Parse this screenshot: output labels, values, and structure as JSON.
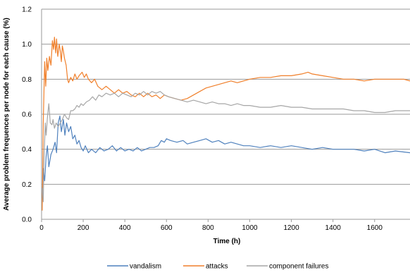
{
  "chart_data": {
    "type": "line",
    "xlabel": "Time (h)",
    "ylabel": "Average problem frequences per node for each cause (%)",
    "xlim": [
      0,
      1770
    ],
    "ylim": [
      0,
      1.2
    ],
    "xticks": [
      0,
      200,
      400,
      600,
      800,
      1000,
      1200,
      1400,
      1600
    ],
    "yticks": [
      "0.0",
      "0.2",
      "0.4",
      "0.6",
      "0.8",
      "1.0",
      "1.2"
    ],
    "grid": "horizontal",
    "legend_position": "bottom",
    "series": [
      {
        "name": "vandalism",
        "color": "#4f81bd",
        "points": [
          [
            3,
            0.12
          ],
          [
            8,
            0.29
          ],
          [
            15,
            0.22
          ],
          [
            22,
            0.36
          ],
          [
            28,
            0.42
          ],
          [
            35,
            0.3
          ],
          [
            45,
            0.37
          ],
          [
            55,
            0.4
          ],
          [
            65,
            0.44
          ],
          [
            72,
            0.38
          ],
          [
            80,
            0.55
          ],
          [
            88,
            0.59
          ],
          [
            95,
            0.5
          ],
          [
            105,
            0.57
          ],
          [
            112,
            0.48
          ],
          [
            120,
            0.55
          ],
          [
            130,
            0.5
          ],
          [
            140,
            0.53
          ],
          [
            150,
            0.46
          ],
          [
            160,
            0.48
          ],
          [
            170,
            0.43
          ],
          [
            180,
            0.45
          ],
          [
            190,
            0.41
          ],
          [
            200,
            0.39
          ],
          [
            210,
            0.42
          ],
          [
            225,
            0.38
          ],
          [
            240,
            0.4
          ],
          [
            260,
            0.38
          ],
          [
            280,
            0.41
          ],
          [
            300,
            0.39
          ],
          [
            320,
            0.4
          ],
          [
            340,
            0.42
          ],
          [
            360,
            0.39
          ],
          [
            380,
            0.41
          ],
          [
            400,
            0.39
          ],
          [
            420,
            0.4
          ],
          [
            440,
            0.39
          ],
          [
            460,
            0.41
          ],
          [
            480,
            0.39
          ],
          [
            500,
            0.4
          ],
          [
            520,
            0.41
          ],
          [
            540,
            0.41
          ],
          [
            560,
            0.42
          ],
          [
            575,
            0.45
          ],
          [
            590,
            0.44
          ],
          [
            600,
            0.46
          ],
          [
            620,
            0.45
          ],
          [
            650,
            0.44
          ],
          [
            680,
            0.45
          ],
          [
            700,
            0.43
          ],
          [
            730,
            0.44
          ],
          [
            760,
            0.45
          ],
          [
            790,
            0.46
          ],
          [
            820,
            0.44
          ],
          [
            850,
            0.45
          ],
          [
            880,
            0.43
          ],
          [
            910,
            0.44
          ],
          [
            940,
            0.43
          ],
          [
            970,
            0.42
          ],
          [
            1000,
            0.42
          ],
          [
            1050,
            0.41
          ],
          [
            1100,
            0.42
          ],
          [
            1150,
            0.41
          ],
          [
            1200,
            0.42
          ],
          [
            1250,
            0.41
          ],
          [
            1300,
            0.4
          ],
          [
            1350,
            0.41
          ],
          [
            1400,
            0.4
          ],
          [
            1450,
            0.4
          ],
          [
            1500,
            0.4
          ],
          [
            1550,
            0.39
          ],
          [
            1600,
            0.4
          ],
          [
            1650,
            0.38
          ],
          [
            1700,
            0.39
          ],
          [
            1770,
            0.38
          ]
        ]
      },
      {
        "name": "attacks",
        "color": "#f07f2a",
        "points": [
          [
            3,
            0.05
          ],
          [
            8,
            0.55
          ],
          [
            12,
            0.75
          ],
          [
            15,
            0.9
          ],
          [
            20,
            0.76
          ],
          [
            25,
            0.92
          ],
          [
            30,
            0.85
          ],
          [
            38,
            0.93
          ],
          [
            45,
            0.88
          ],
          [
            52,
            1.02
          ],
          [
            58,
            0.97
          ],
          [
            62,
            1.04
          ],
          [
            68,
            0.95
          ],
          [
            72,
            1.03
          ],
          [
            78,
            0.93
          ],
          [
            85,
            1.0
          ],
          [
            90,
            0.96
          ],
          [
            95,
            0.9
          ],
          [
            100,
            0.99
          ],
          [
            105,
            0.96
          ],
          [
            110,
            0.92
          ],
          [
            118,
            0.88
          ],
          [
            125,
            0.8
          ],
          [
            130,
            0.78
          ],
          [
            140,
            0.81
          ],
          [
            150,
            0.79
          ],
          [
            160,
            0.83
          ],
          [
            170,
            0.8
          ],
          [
            180,
            0.82
          ],
          [
            195,
            0.84
          ],
          [
            205,
            0.81
          ],
          [
            215,
            0.83
          ],
          [
            225,
            0.8
          ],
          [
            240,
            0.78
          ],
          [
            255,
            0.8
          ],
          [
            270,
            0.76
          ],
          [
            290,
            0.74
          ],
          [
            310,
            0.76
          ],
          [
            330,
            0.74
          ],
          [
            350,
            0.72
          ],
          [
            370,
            0.74
          ],
          [
            390,
            0.72
          ],
          [
            410,
            0.73
          ],
          [
            430,
            0.71
          ],
          [
            450,
            0.7
          ],
          [
            470,
            0.72
          ],
          [
            490,
            0.7
          ],
          [
            510,
            0.72
          ],
          [
            530,
            0.7
          ],
          [
            550,
            0.71
          ],
          [
            570,
            0.69
          ],
          [
            590,
            0.71
          ],
          [
            610,
            0.7
          ],
          [
            640,
            0.69
          ],
          [
            670,
            0.68
          ],
          [
            700,
            0.69
          ],
          [
            730,
            0.71
          ],
          [
            760,
            0.73
          ],
          [
            790,
            0.75
          ],
          [
            820,
            0.76
          ],
          [
            850,
            0.77
          ],
          [
            880,
            0.78
          ],
          [
            910,
            0.79
          ],
          [
            940,
            0.78
          ],
          [
            970,
            0.79
          ],
          [
            1000,
            0.8
          ],
          [
            1050,
            0.81
          ],
          [
            1100,
            0.81
          ],
          [
            1150,
            0.82
          ],
          [
            1200,
            0.82
          ],
          [
            1250,
            0.83
          ],
          [
            1280,
            0.84
          ],
          [
            1300,
            0.83
          ],
          [
            1350,
            0.82
          ],
          [
            1400,
            0.81
          ],
          [
            1450,
            0.8
          ],
          [
            1500,
            0.8
          ],
          [
            1550,
            0.79
          ],
          [
            1600,
            0.8
          ],
          [
            1650,
            0.8
          ],
          [
            1700,
            0.8
          ],
          [
            1740,
            0.8
          ],
          [
            1770,
            0.79
          ]
        ]
      },
      {
        "name": "component failures",
        "color": "#a6a6a6",
        "points": [
          [
            3,
            0.18
          ],
          [
            8,
            0.1
          ],
          [
            12,
            0.35
          ],
          [
            18,
            0.55
          ],
          [
            22,
            0.48
          ],
          [
            28,
            0.58
          ],
          [
            35,
            0.66
          ],
          [
            42,
            0.55
          ],
          [
            50,
            0.54
          ],
          [
            55,
            0.57
          ],
          [
            62,
            0.52
          ],
          [
            70,
            0.55
          ],
          [
            80,
            0.53
          ],
          [
            90,
            0.55
          ],
          [
            100,
            0.57
          ],
          [
            110,
            0.6
          ],
          [
            120,
            0.58
          ],
          [
            130,
            0.57
          ],
          [
            140,
            0.62
          ],
          [
            150,
            0.62
          ],
          [
            160,
            0.63
          ],
          [
            170,
            0.65
          ],
          [
            180,
            0.64
          ],
          [
            190,
            0.66
          ],
          [
            200,
            0.65
          ],
          [
            215,
            0.67
          ],
          [
            230,
            0.68
          ],
          [
            245,
            0.7
          ],
          [
            260,
            0.68
          ],
          [
            275,
            0.71
          ],
          [
            290,
            0.7
          ],
          [
            310,
            0.72
          ],
          [
            330,
            0.71
          ],
          [
            350,
            0.72
          ],
          [
            370,
            0.7
          ],
          [
            390,
            0.72
          ],
          [
            410,
            0.71
          ],
          [
            430,
            0.7
          ],
          [
            450,
            0.72
          ],
          [
            470,
            0.71
          ],
          [
            490,
            0.73
          ],
          [
            510,
            0.71
          ],
          [
            530,
            0.73
          ],
          [
            550,
            0.72
          ],
          [
            570,
            0.73
          ],
          [
            590,
            0.71
          ],
          [
            610,
            0.7
          ],
          [
            640,
            0.69
          ],
          [
            670,
            0.68
          ],
          [
            700,
            0.67
          ],
          [
            730,
            0.68
          ],
          [
            760,
            0.67
          ],
          [
            790,
            0.66
          ],
          [
            820,
            0.67
          ],
          [
            850,
            0.66
          ],
          [
            880,
            0.66
          ],
          [
            910,
            0.65
          ],
          [
            940,
            0.66
          ],
          [
            970,
            0.65
          ],
          [
            1000,
            0.65
          ],
          [
            1050,
            0.64
          ],
          [
            1100,
            0.64
          ],
          [
            1150,
            0.65
          ],
          [
            1200,
            0.64
          ],
          [
            1250,
            0.64
          ],
          [
            1300,
            0.63
          ],
          [
            1350,
            0.63
          ],
          [
            1400,
            0.63
          ],
          [
            1450,
            0.63
          ],
          [
            1500,
            0.62
          ],
          [
            1550,
            0.62
          ],
          [
            1600,
            0.61
          ],
          [
            1650,
            0.61
          ],
          [
            1700,
            0.62
          ],
          [
            1770,
            0.62
          ]
        ]
      }
    ]
  }
}
